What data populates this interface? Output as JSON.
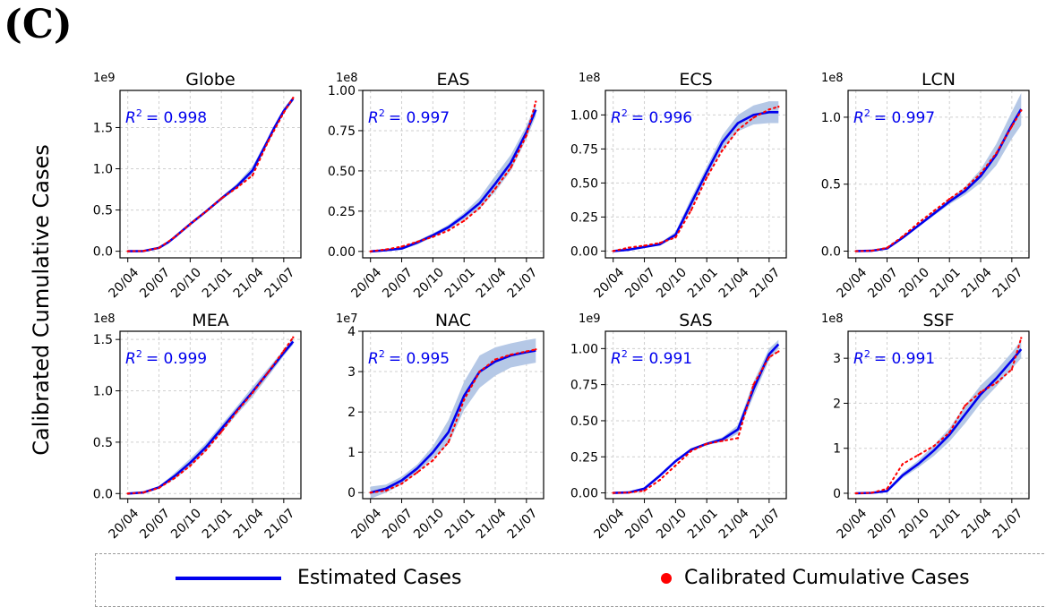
{
  "figure": {
    "panel_label": "(C)",
    "ylabel": "Calibrated Cumulative Cases",
    "legend": {
      "estimated": "Estimated Cases",
      "calibrated": "Calibrated Cumulative Cases"
    },
    "colors": {
      "estimated": "#0000ee",
      "calibrated": "#ff0000",
      "band": "#b5c8e6",
      "grid": "#cfcfcf"
    }
  },
  "chart_data": [
    {
      "type": "line",
      "title": "Globe",
      "multiplier": "1e9",
      "r2_label": "= 0.998",
      "x_ticks": [
        "20/04",
        "20/07",
        "20/10",
        "21/01",
        "21/04",
        "21/07"
      ],
      "ylim": [
        -0.08,
        1.95
      ],
      "y_ticks": [
        {
          "v": 0.0,
          "l": "0.0"
        },
        {
          "v": 0.5,
          "l": "0.5"
        },
        {
          "v": 1.0,
          "l": "1.0"
        },
        {
          "v": 1.5,
          "l": "1.5"
        }
      ],
      "series": [
        {
          "x": [
            0,
            0.5,
            1,
            1.3,
            1.5,
            2,
            2.5,
            3,
            3.5,
            4,
            4.5,
            4.7,
            5,
            5.3
          ],
          "y": [
            0,
            0.003,
            0.04,
            0.11,
            0.17,
            0.33,
            0.48,
            0.64,
            0.79,
            0.98,
            1.35,
            1.5,
            1.7,
            1.85
          ]
        }
      ],
      "calibrated": {
        "x": [
          0,
          0.5,
          1,
          1.5,
          2,
          2.5,
          3,
          3.5,
          4,
          4.5,
          5,
          5.3
        ],
        "y": [
          0,
          0.003,
          0.04,
          0.17,
          0.33,
          0.48,
          0.64,
          0.77,
          0.92,
          1.33,
          1.68,
          1.86
        ]
      },
      "band_width": [
        0,
        0,
        0,
        0.01,
        0.01,
        0.01,
        0.01,
        0.02,
        0.03,
        0.05,
        0.03,
        0.03,
        0.03,
        0.03
      ]
    },
    {
      "type": "line",
      "title": "EAS",
      "multiplier": "1e8",
      "r2_label": "= 0.997",
      "x_ticks": [
        "20/04",
        "20/07",
        "20/10",
        "21/01",
        "21/04",
        "21/07"
      ],
      "ylim": [
        -0.04,
        1.0
      ],
      "y_ticks": [
        {
          "v": 0.0,
          "l": "0.00"
        },
        {
          "v": 0.25,
          "l": "0.25"
        },
        {
          "v": 0.5,
          "l": "0.50"
        },
        {
          "v": 0.75,
          "l": "0.75"
        },
        {
          "v": 1.0,
          "l": "1.00"
        }
      ],
      "series": [
        {
          "x": [
            0,
            0.5,
            1,
            1.5,
            2,
            2.5,
            3,
            3.5,
            4,
            4.5,
            5,
            5.3
          ],
          "y": [
            0,
            0.008,
            0.018,
            0.055,
            0.1,
            0.15,
            0.22,
            0.3,
            0.42,
            0.55,
            0.74,
            0.88
          ]
        }
      ],
      "calibrated": {
        "x": [
          0,
          0.5,
          1,
          1.5,
          2,
          2.5,
          3,
          3.5,
          4,
          4.5,
          5,
          5.3
        ],
        "y": [
          0,
          0.012,
          0.03,
          0.06,
          0.09,
          0.13,
          0.19,
          0.27,
          0.39,
          0.52,
          0.72,
          0.93
        ]
      },
      "band_width": [
        0,
        0.003,
        0.008,
        0.012,
        0.012,
        0.015,
        0.02,
        0.035,
        0.05,
        0.05,
        0.04,
        0.04
      ]
    },
    {
      "type": "line",
      "title": "ECS",
      "multiplier": "1e8",
      "r2_label": "= 0.996",
      "x_ticks": [
        "20/04",
        "20/07",
        "20/10",
        "21/01",
        "21/04",
        "21/07"
      ],
      "ylim": [
        -0.05,
        1.18
      ],
      "y_ticks": [
        {
          "v": 0.0,
          "l": "0.00"
        },
        {
          "v": 0.25,
          "l": "0.25"
        },
        {
          "v": 0.5,
          "l": "0.50"
        },
        {
          "v": 0.75,
          "l": "0.75"
        },
        {
          "v": 1.0,
          "l": "1.00"
        }
      ],
      "series": [
        {
          "x": [
            0,
            0.5,
            1,
            1.5,
            2,
            2.5,
            3,
            3.5,
            4,
            4.5,
            5,
            5.3
          ],
          "y": [
            0,
            0.01,
            0.03,
            0.05,
            0.12,
            0.35,
            0.58,
            0.8,
            0.94,
            1.0,
            1.02,
            1.02
          ]
        }
      ],
      "calibrated": {
        "x": [
          0,
          0.5,
          1,
          1.5,
          2,
          2.5,
          3,
          3.5,
          4,
          4.5,
          5,
          5.3
        ],
        "y": [
          0,
          0.025,
          0.04,
          0.06,
          0.1,
          0.3,
          0.54,
          0.74,
          0.89,
          0.98,
          1.04,
          1.06
        ]
      },
      "band_width": [
        0,
        0.005,
        0.005,
        0.01,
        0.02,
        0.04,
        0.04,
        0.05,
        0.06,
        0.07,
        0.08,
        0.08
      ]
    },
    {
      "type": "line",
      "title": "LCN",
      "multiplier": "1e8",
      "r2_label": "= 0.997",
      "x_ticks": [
        "20/04",
        "20/07",
        "20/10",
        "21/01",
        "21/04",
        "21/07"
      ],
      "ylim": [
        -0.05,
        1.2
      ],
      "y_ticks": [
        {
          "v": 0.0,
          "l": "0.0"
        },
        {
          "v": 0.5,
          "l": "0.5"
        },
        {
          "v": 1.0,
          "l": "1.0"
        }
      ],
      "series": [
        {
          "x": [
            0,
            0.5,
            1,
            1.5,
            2,
            2.5,
            3,
            3.5,
            4,
            4.5,
            5,
            5.3
          ],
          "y": [
            0,
            0.003,
            0.02,
            0.1,
            0.19,
            0.28,
            0.37,
            0.45,
            0.56,
            0.72,
            0.94,
            1.06
          ]
        }
      ],
      "calibrated": {
        "x": [
          0,
          0.5,
          1,
          1.5,
          2,
          2.5,
          3,
          3.5,
          4,
          4.5,
          5,
          5.3
        ],
        "y": [
          0,
          0.003,
          0.025,
          0.11,
          0.21,
          0.3,
          0.39,
          0.47,
          0.58,
          0.73,
          0.93,
          1.05
        ]
      },
      "band_width": [
        0,
        0,
        0.005,
        0.01,
        0.01,
        0.015,
        0.02,
        0.03,
        0.05,
        0.08,
        0.1,
        0.12
      ]
    },
    {
      "type": "line",
      "title": "MEA",
      "multiplier": "1e8",
      "r2_label": "= 0.999",
      "x_ticks": [
        "20/04",
        "20/07",
        "20/10",
        "21/01",
        "21/04",
        "21/07"
      ],
      "ylim": [
        -0.05,
        1.58
      ],
      "y_ticks": [
        {
          "v": 0.0,
          "l": "0.0"
        },
        {
          "v": 0.5,
          "l": "0.5"
        },
        {
          "v": 1.0,
          "l": "1.0"
        },
        {
          "v": 1.5,
          "l": "1.5"
        }
      ],
      "series": [
        {
          "x": [
            0,
            0.5,
            1,
            1.5,
            2,
            2.5,
            3,
            3.5,
            4,
            4.5,
            5,
            5.3
          ],
          "y": [
            0,
            0.01,
            0.06,
            0.17,
            0.3,
            0.45,
            0.63,
            0.81,
            0.99,
            1.18,
            1.37,
            1.48
          ]
        }
      ],
      "calibrated": {
        "x": [
          0,
          0.5,
          1,
          1.5,
          2,
          2.5,
          3,
          3.5,
          4,
          4.5,
          5,
          5.3
        ],
        "y": [
          0,
          0.01,
          0.055,
          0.15,
          0.27,
          0.42,
          0.6,
          0.8,
          0.98,
          1.18,
          1.39,
          1.52
        ]
      },
      "band_width": [
        0,
        0.003,
        0.01,
        0.03,
        0.04,
        0.04,
        0.04,
        0.04,
        0.05,
        0.04,
        0.03,
        0.03
      ]
    },
    {
      "type": "line",
      "title": "NAC",
      "multiplier": "1e7",
      "r2_label": "= 0.995",
      "x_ticks": [
        "20/04",
        "20/07",
        "20/10",
        "21/01",
        "21/04",
        "21/07"
      ],
      "ylim": [
        -0.15,
        4.0
      ],
      "y_ticks": [
        {
          "v": 0,
          "l": "0"
        },
        {
          "v": 1,
          "l": "1"
        },
        {
          "v": 2,
          "l": "2"
        },
        {
          "v": 3,
          "l": "3"
        },
        {
          "v": 4,
          "l": "4"
        }
      ],
      "series": [
        {
          "x": [
            0,
            0.5,
            1,
            1.5,
            2,
            2.5,
            3,
            3.5,
            4,
            4.5,
            5,
            5.3
          ],
          "y": [
            0,
            0.1,
            0.3,
            0.6,
            1.0,
            1.5,
            2.4,
            3.0,
            3.25,
            3.4,
            3.48,
            3.52
          ]
        }
      ],
      "calibrated": {
        "x": [
          0,
          0.5,
          1,
          1.5,
          2,
          2.5,
          3,
          3.5,
          4,
          4.5,
          5,
          5.3
        ],
        "y": [
          0,
          0.05,
          0.22,
          0.5,
          0.8,
          1.25,
          2.3,
          3.0,
          3.3,
          3.42,
          3.5,
          3.55
        ]
      },
      "band_width": [
        0.15,
        0.1,
        0.1,
        0.1,
        0.15,
        0.3,
        0.35,
        0.4,
        0.35,
        0.3,
        0.3,
        0.3
      ]
    },
    {
      "type": "line",
      "title": "SAS",
      "multiplier": "1e9",
      "r2_label": "= 0.991",
      "x_ticks": [
        "20/04",
        "20/07",
        "20/10",
        "21/01",
        "21/04",
        "21/07"
      ],
      "ylim": [
        -0.04,
        1.12
      ],
      "y_ticks": [
        {
          "v": 0.0,
          "l": "0.00"
        },
        {
          "v": 0.25,
          "l": "0.25"
        },
        {
          "v": 0.5,
          "l": "0.50"
        },
        {
          "v": 0.75,
          "l": "0.75"
        },
        {
          "v": 1.0,
          "l": "1.00"
        }
      ],
      "series": [
        {
          "x": [
            0,
            0.5,
            1,
            1.5,
            2,
            2.5,
            3,
            3.5,
            4,
            4.5,
            5,
            5.3
          ],
          "y": [
            0,
            0.003,
            0.03,
            0.12,
            0.22,
            0.3,
            0.34,
            0.37,
            0.44,
            0.72,
            0.96,
            1.03
          ]
        }
      ],
      "calibrated": {
        "x": [
          0,
          0.5,
          1,
          1.5,
          2,
          2.5,
          3,
          3.5,
          4,
          4.5,
          5,
          5.3
        ],
        "y": [
          0,
          0.002,
          0.015,
          0.09,
          0.19,
          0.29,
          0.34,
          0.36,
          0.38,
          0.75,
          0.94,
          0.98
        ]
      },
      "band_width": [
        0,
        0,
        0.005,
        0.01,
        0.01,
        0.01,
        0.01,
        0.015,
        0.03,
        0.05,
        0.04,
        0.03
      ]
    },
    {
      "type": "line",
      "title": "SSF",
      "multiplier": "1e8",
      "r2_label": "= 0.991",
      "x_ticks": [
        "20/04",
        "20/07",
        "20/10",
        "21/01",
        "21/04",
        "21/07"
      ],
      "ylim": [
        -0.12,
        3.6
      ],
      "y_ticks": [
        {
          "v": 0,
          "l": "0"
        },
        {
          "v": 1,
          "l": "1"
        },
        {
          "v": 2,
          "l": "2"
        },
        {
          "v": 3,
          "l": "3"
        }
      ],
      "series": [
        {
          "x": [
            0,
            0.5,
            1,
            1.5,
            2,
            2.5,
            3,
            3.5,
            4,
            4.5,
            5,
            5.3
          ],
          "y": [
            0,
            0.01,
            0.05,
            0.4,
            0.65,
            0.95,
            1.3,
            1.75,
            2.2,
            2.55,
            2.95,
            3.2
          ]
        }
      ],
      "calibrated": {
        "x": [
          0,
          0.5,
          1,
          1.5,
          2,
          2.5,
          3,
          3.5,
          4,
          4.5,
          5,
          5.3
        ],
        "y": [
          0,
          0.01,
          0.1,
          0.65,
          0.85,
          1.05,
          1.35,
          1.95,
          2.25,
          2.45,
          2.75,
          3.45
        ]
      },
      "band_width": [
        0,
        0.01,
        0.03,
        0.06,
        0.08,
        0.12,
        0.15,
        0.2,
        0.2,
        0.18,
        0.18,
        0.2
      ]
    }
  ]
}
